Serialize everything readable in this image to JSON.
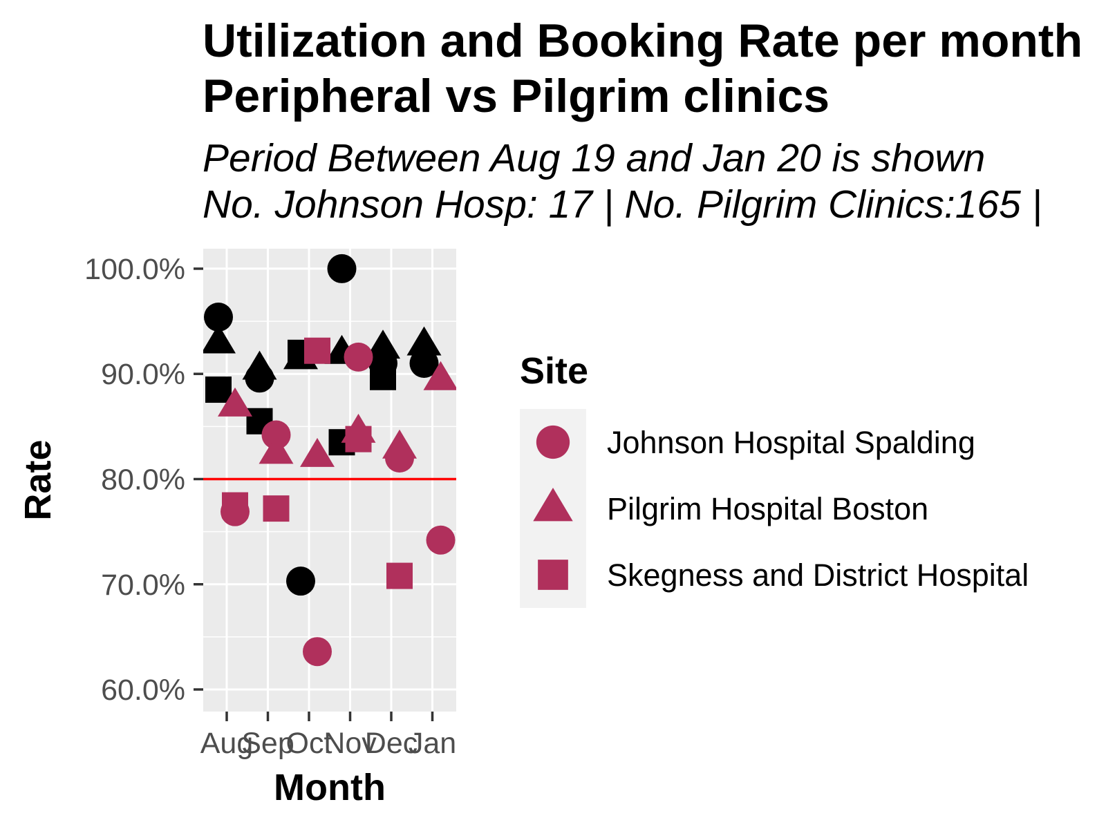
{
  "chart_data": {
    "type": "scatter",
    "title_lines": [
      "Utilization and Booking Rate per month",
      "Peripheral vs Pilgrim clinics"
    ],
    "subtitle_lines": [
      "Period Between Aug 19 and Jan 20 is shown",
      "No. Johnson Hosp: 17 | No. Pilgrim Clinics:165 |"
    ],
    "xlabel": "Month",
    "ylabel": "Rate",
    "categories": [
      "Aug",
      "Sep",
      "Oct",
      "Nov",
      "Dec",
      "Jan"
    ],
    "y_ticks": [
      "60.0%",
      "70.0%",
      "80.0%",
      "90.0%",
      "100.0%"
    ],
    "y_tick_values": [
      60,
      70,
      80,
      90,
      100
    ],
    "ylim": [
      57.9,
      101.9
    ],
    "reference_line": 80,
    "reference_line_color": "#ff0000",
    "panel_background": "#ebebeb",
    "grid": true,
    "legend": {
      "title": "Site",
      "placement": "right",
      "entries": [
        {
          "label": "Johnson Hospital Spalding",
          "shape": "circle"
        },
        {
          "label": "Pilgrim Hospital Boston",
          "shape": "triangle"
        },
        {
          "label": "Skegness and District Hospital",
          "shape": "square"
        }
      ]
    },
    "colors": {
      "utilization": "#000000",
      "booking": "#b0305c"
    },
    "series": [
      {
        "metric": "utilization",
        "site": "Johnson Hospital Spalding",
        "shape": "circle",
        "values": [
          95.4,
          89.6,
          70.3,
          100.0,
          91.0,
          91.0
        ]
      },
      {
        "metric": "utilization",
        "site": "Pilgrim Hospital Boston",
        "shape": "triangle",
        "values": [
          93.0,
          90.5,
          91.5,
          92.0,
          92.5,
          92.8
        ]
      },
      {
        "metric": "utilization",
        "site": "Skegness and District Hospital",
        "shape": "square",
        "values": [
          88.5,
          85.5,
          92.0,
          83.5,
          89.7,
          null
        ]
      },
      {
        "metric": "booking",
        "site": "Johnson Hospital Spalding",
        "shape": "circle",
        "values": [
          76.9,
          84.2,
          63.6,
          91.6,
          82.0,
          74.2
        ]
      },
      {
        "metric": "booking",
        "site": "Pilgrim Hospital Boston",
        "shape": "triangle",
        "values": [
          87.0,
          82.5,
          82.2,
          84.5,
          83.0,
          89.5
        ]
      },
      {
        "metric": "booking",
        "site": "Skegness and District Hospital",
        "shape": "square",
        "values": [
          77.5,
          77.2,
          92.2,
          83.8,
          70.8,
          null
        ]
      }
    ]
  }
}
